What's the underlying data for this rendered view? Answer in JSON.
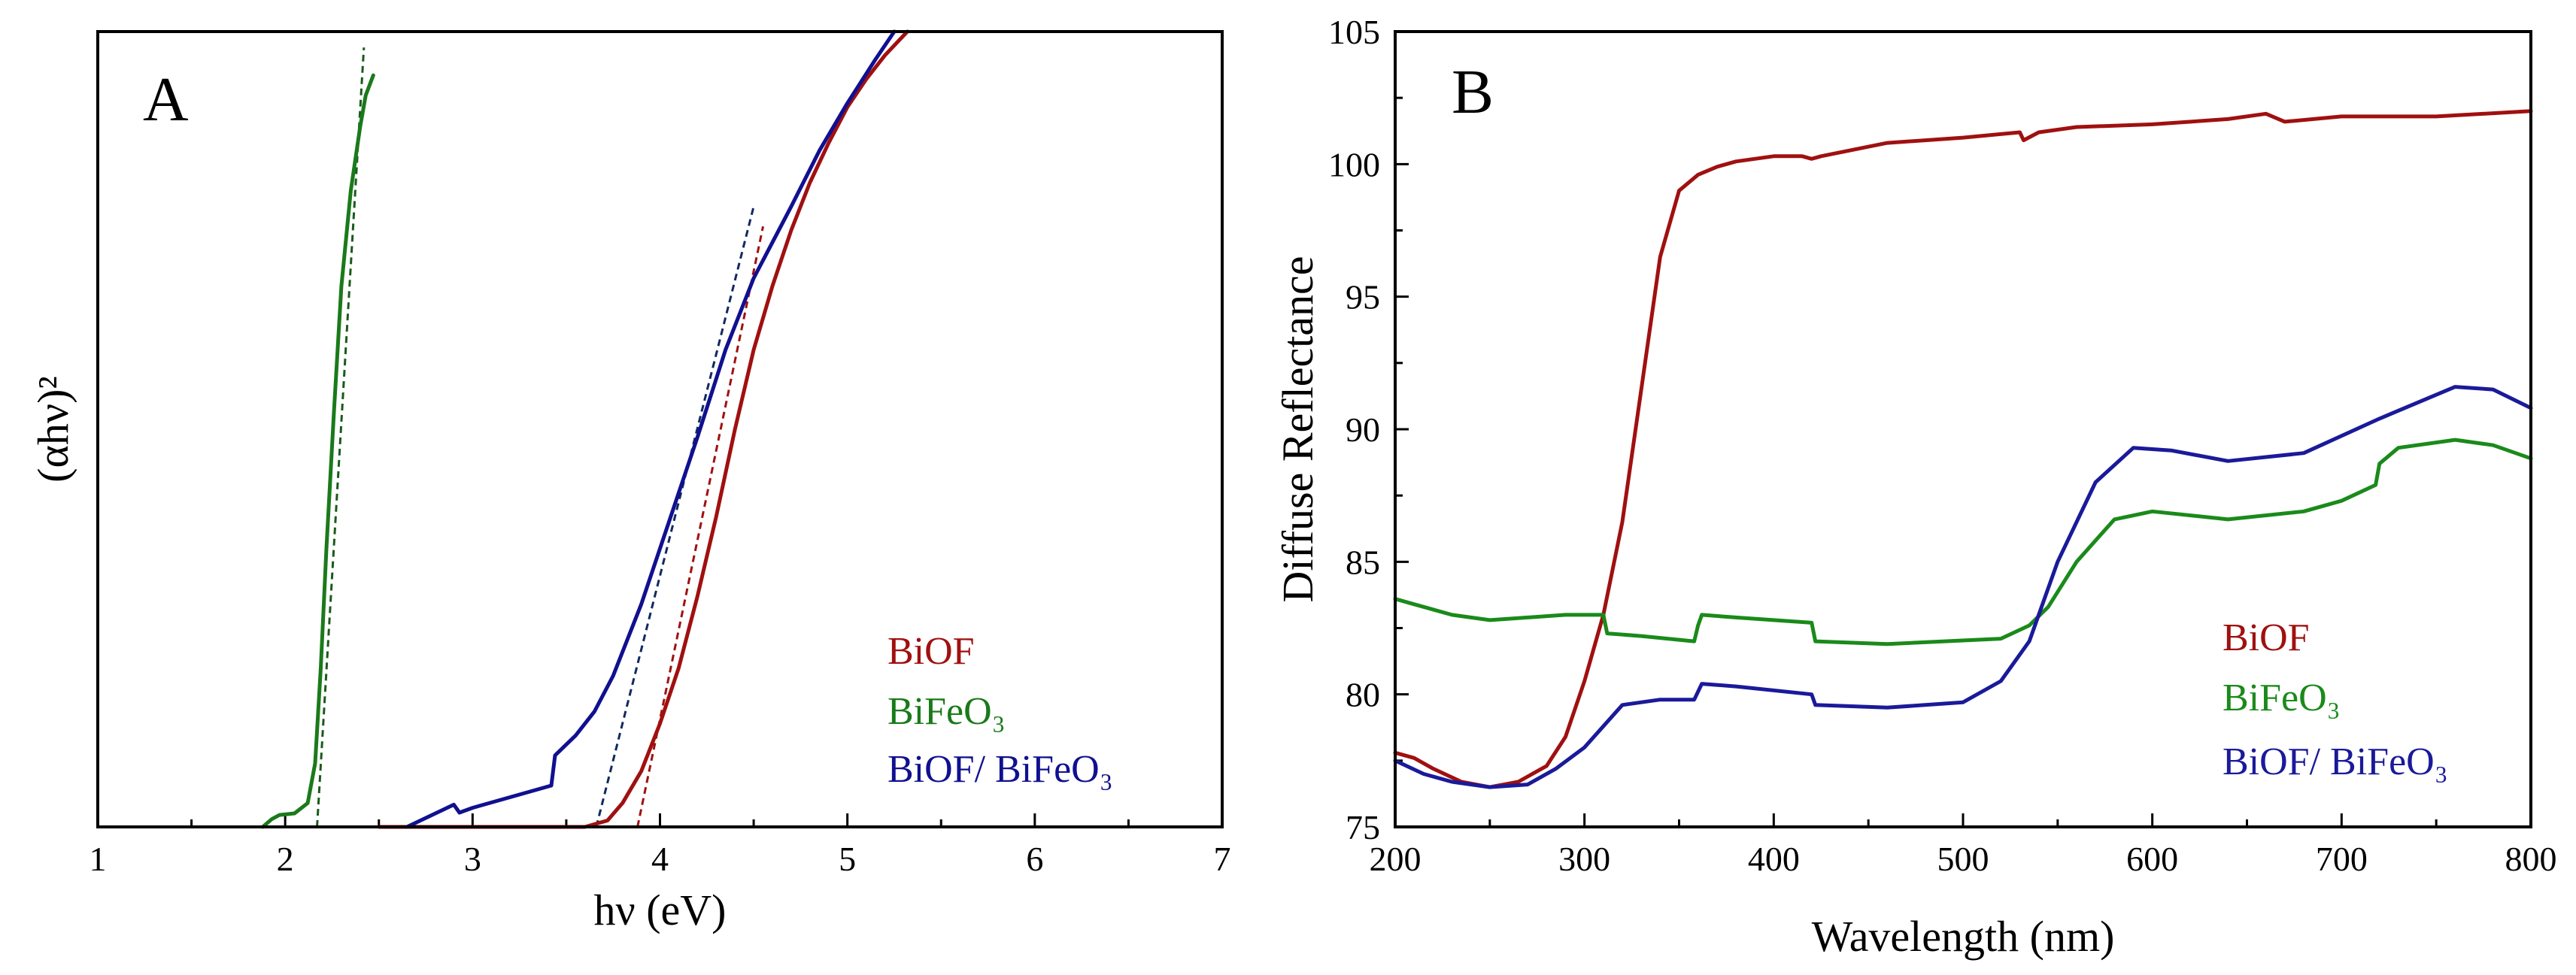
{
  "chart_data": [
    {
      "type": "line",
      "panel_label": "A",
      "xlabel": "hν (eV)",
      "ylabel": "(αhν)²",
      "xlim": [
        1,
        7
      ],
      "ylim": [
        0,
        1
      ],
      "x_ticks": [
        "1",
        "2",
        "3",
        "4",
        "5",
        "6",
        "7"
      ],
      "show_y_ticks": false,
      "legend": [
        "BiOF",
        "BiFeO₃",
        "BiOF/ BiFeO₃"
      ],
      "legend_position": "bottom-right",
      "series": [
        {
          "name": "BiOF",
          "color": "#a01010",
          "x": [
            2.5,
            3.6,
            3.72,
            3.8,
            3.9,
            4.0,
            4.1,
            4.2,
            4.3,
            4.4,
            4.5,
            4.6,
            4.7,
            4.8,
            4.9,
            5.0,
            5.1,
            5.2,
            5.32
          ],
          "y": [
            0.0,
            0.0,
            0.008,
            0.03,
            0.07,
            0.13,
            0.2,
            0.29,
            0.39,
            0.5,
            0.6,
            0.68,
            0.75,
            0.81,
            0.86,
            0.905,
            0.94,
            0.97,
            1.0
          ]
        },
        {
          "name": "BiFeO₃",
          "color": "#1a7a1a",
          "x": [
            1.88,
            1.93,
            1.97,
            2.05,
            2.12,
            2.16,
            2.19,
            2.22,
            2.26,
            2.3,
            2.35,
            2.4,
            2.43,
            2.47
          ],
          "y": [
            0.0,
            0.01,
            0.015,
            0.017,
            0.03,
            0.08,
            0.2,
            0.35,
            0.52,
            0.68,
            0.8,
            0.88,
            0.92,
            0.945
          ]
        },
        {
          "name": "BiOF/ BiFeO₃",
          "color": "#101090",
          "x": [
            2.65,
            2.9,
            2.93,
            3.0,
            3.42,
            3.44,
            3.55,
            3.65,
            3.75,
            3.9,
            4.0,
            4.1,
            4.2,
            4.35,
            4.5,
            4.7,
            4.85,
            5.0,
            5.15,
            5.25
          ],
          "y": [
            0.0,
            0.028,
            0.018,
            0.024,
            0.052,
            0.09,
            0.115,
            0.145,
            0.19,
            0.28,
            0.35,
            0.42,
            0.49,
            0.6,
            0.69,
            0.78,
            0.85,
            0.91,
            0.965,
            1.0
          ]
        }
      ],
      "tangent_lines": [
        {
          "name": "BiOF fit",
          "color": "#a01010",
          "x": [
            3.88,
            4.55
          ],
          "y": [
            0.0,
            0.755
          ]
        },
        {
          "name": "BiFeO₃ fit",
          "color": "#1a5a1a",
          "x": [
            2.17,
            2.42
          ],
          "y": [
            0.0,
            0.98
          ]
        },
        {
          "name": "BiOF/ BiFeO₃ fit",
          "color": "#102a60",
          "x": [
            3.66,
            4.5
          ],
          "y": [
            0.0,
            0.78
          ]
        }
      ]
    },
    {
      "type": "line",
      "panel_label": "B",
      "xlabel": "Wavelength (nm)",
      "ylabel": "Diffuse Reflectance",
      "xlim": [
        200,
        800
      ],
      "ylim": [
        75,
        105
      ],
      "x_ticks": [
        "200",
        "300",
        "400",
        "500",
        "600",
        "700",
        "800"
      ],
      "y_ticks": [
        "75",
        "80",
        "85",
        "90",
        "95",
        "100",
        "105"
      ],
      "legend": [
        "BiOF",
        "BiFeO₃",
        "BiOF/ BiFeO₃"
      ],
      "legend_position": "bottom-right",
      "series": [
        {
          "name": "BiOF",
          "color": "#a01010",
          "x": [
            200,
            210,
            220,
            235,
            250,
            265,
            280,
            290,
            300,
            310,
            320,
            330,
            340,
            350,
            360,
            370,
            380,
            400,
            415,
            420,
            425,
            460,
            500,
            530,
            532,
            540,
            560,
            600,
            640,
            660,
            670,
            700,
            750,
            800
          ],
          "y": [
            77.8,
            77.6,
            77.2,
            76.7,
            76.5,
            76.7,
            77.3,
            78.4,
            80.5,
            83.0,
            86.5,
            91.5,
            96.5,
            99.0,
            99.6,
            99.9,
            100.1,
            100.3,
            100.3,
            100.2,
            100.3,
            100.8,
            101.0,
            101.2,
            100.9,
            101.2,
            101.4,
            101.5,
            101.7,
            101.9,
            101.6,
            101.8,
            101.8,
            102.0
          ]
        },
        {
          "name": "BiFeO₃",
          "color": "#1a8a1a",
          "x": [
            200,
            210,
            230,
            250,
            270,
            290,
            310,
            312,
            330,
            358,
            360,
            362,
            380,
            420,
            422,
            460,
            520,
            535,
            545,
            560,
            580,
            600,
            640,
            680,
            700,
            718,
            720,
            730,
            760,
            780,
            800
          ],
          "y": [
            83.6,
            83.4,
            83.0,
            82.8,
            82.9,
            83.0,
            83.0,
            82.3,
            82.2,
            82.0,
            82.6,
            83.0,
            82.9,
            82.7,
            82.0,
            81.9,
            82.1,
            82.6,
            83.3,
            85.0,
            86.6,
            86.9,
            86.6,
            86.9,
            87.3,
            87.9,
            88.7,
            89.3,
            89.6,
            89.4,
            88.9
          ]
        },
        {
          "name": "BiOF/ BiFeO₃",
          "color": "#1a1a9a",
          "x": [
            200,
            215,
            230,
            250,
            270,
            285,
            300,
            320,
            340,
            358,
            360,
            362,
            380,
            420,
            422,
            460,
            500,
            520,
            535,
            550,
            570,
            590,
            610,
            640,
            680,
            720,
            760,
            780,
            800
          ],
          "y": [
            77.5,
            77.0,
            76.7,
            76.5,
            76.6,
            77.2,
            78.0,
            79.6,
            79.8,
            79.8,
            80.1,
            80.4,
            80.3,
            80.0,
            79.6,
            79.5,
            79.7,
            80.5,
            82.0,
            85.0,
            88.0,
            89.3,
            89.2,
            88.8,
            89.1,
            90.4,
            91.6,
            91.5,
            90.8
          ]
        }
      ]
    }
  ]
}
